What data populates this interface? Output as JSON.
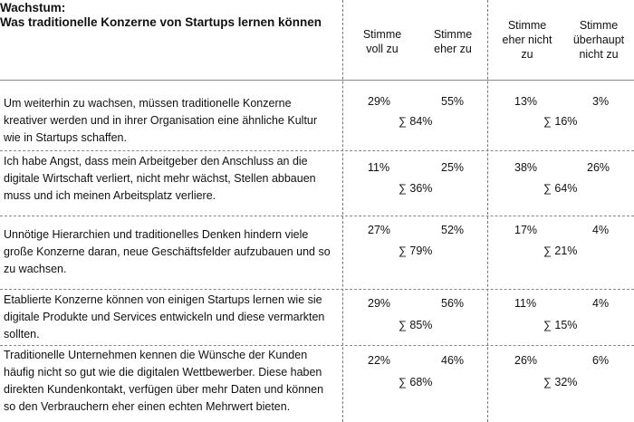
{
  "title": {
    "line1": "Wachstum:",
    "line2": "Was traditionelle Konzerne von Startups lernen können"
  },
  "columns": [
    {
      "line1": "Stimme",
      "line2": "voll zu",
      "line3": ""
    },
    {
      "line1": "Stimme",
      "line2": "eher zu",
      "line3": ""
    },
    {
      "line1": "Stimme",
      "line2": "eher nicht",
      "line3": "zu"
    },
    {
      "line1": "Stimme",
      "line2": "überhaupt",
      "line3": "nicht zu"
    }
  ],
  "rows": [
    {
      "statement": "Um weiterhin zu wachsen, müssen traditionelle Konzerne kreativer werden und in ihrer Organisation eine ähnliche Kultur wie in Startups schaffen.",
      "voll": "29%",
      "eher": "55%",
      "eher_nicht": "13%",
      "ueberhaupt_nicht": "3%",
      "sum_agree": "∑ 84%",
      "sum_disagree": "∑ 16%"
    },
    {
      "statement": "Ich habe Angst, dass mein Arbeitgeber den Anschluss an die digitale Wirtschaft verliert, nicht mehr wächst, Stellen abbauen muss und ich meinen Arbeitsplatz verliere.",
      "voll": "11%",
      "eher": "25%",
      "eher_nicht": "38%",
      "ueberhaupt_nicht": "26%",
      "sum_agree": "∑ 36%",
      "sum_disagree": "∑ 64%"
    },
    {
      "statement": "Unnötige Hierarchien und traditionelles Denken hindern viele große Konzerne daran, neue Geschäftsfelder aufzubauen und so zu wachsen.",
      "voll": "27%",
      "eher": "52%",
      "eher_nicht": "17%",
      "ueberhaupt_nicht": "4%",
      "sum_agree": "∑ 79%",
      "sum_disagree": "∑ 21%"
    },
    {
      "statement": "Etablierte Konzerne können von einigen Startups lernen wie sie digitale Produkte und Services entwickeln und diese vermarkten sollten.",
      "voll": "29%",
      "eher": "56%",
      "eher_nicht": "11%",
      "ueberhaupt_nicht": "4%",
      "sum_agree": "∑ 85%",
      "sum_disagree": "∑ 15%"
    },
    {
      "statement": "Traditionelle Unternehmen kennen die Wünsche der Kunden häufig nicht so gut wie die digitalen Wettbewerber. Diese haben direkten Kundenkontakt, verfügen über mehr Daten und können so den Verbrauchern eher einen echten Mehrwert bieten.",
      "voll": "22%",
      "eher": "46%",
      "eher_nicht": "26%",
      "ueberhaupt_nicht": "6%",
      "sum_agree": "∑ 68%",
      "sum_disagree": "∑ 32%"
    }
  ]
}
